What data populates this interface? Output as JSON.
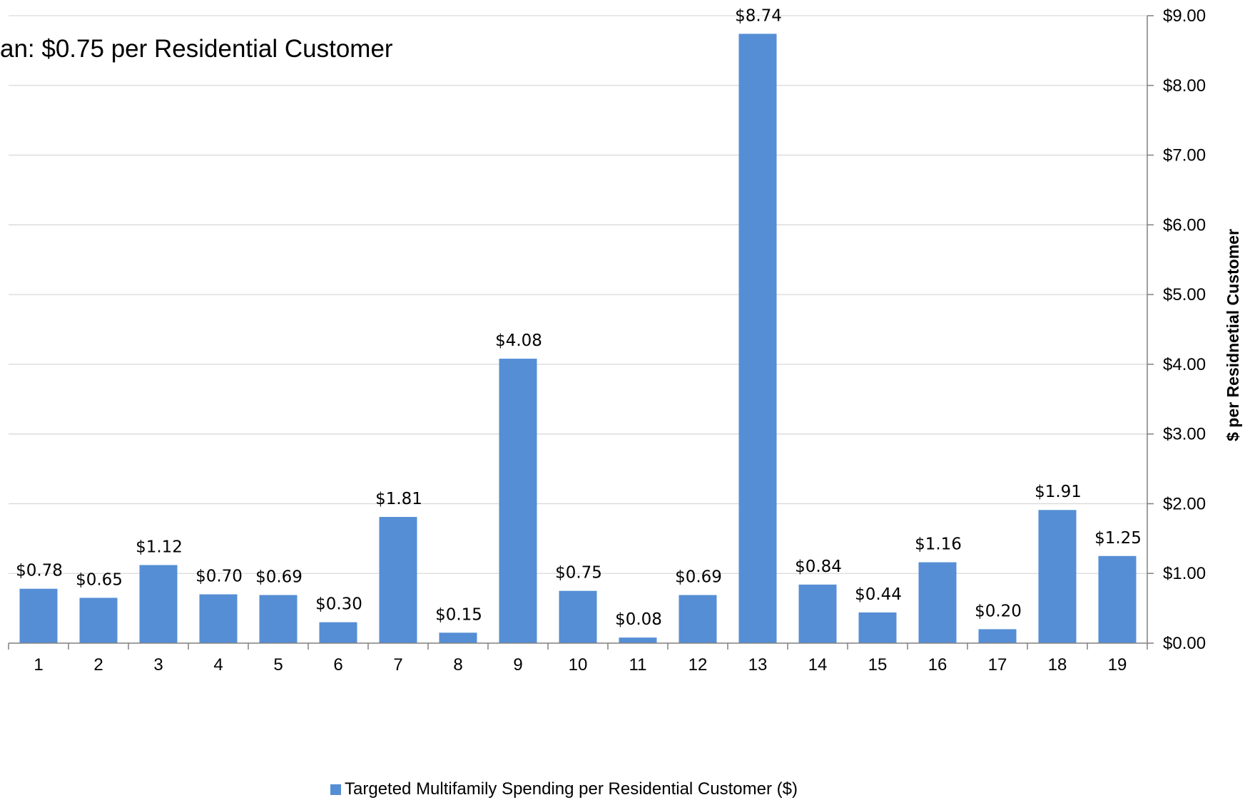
{
  "chart_data": {
    "type": "bar",
    "annotation": "an: $0.75 per Residential Customer",
    "ylabel": "$ per Residnetial Customer",
    "ylim": [
      0,
      9
    ],
    "y_ticks": [
      "$0.00",
      "$1.00",
      "$2.00",
      "$3.00",
      "$4.00",
      "$5.00",
      "$6.00",
      "$7.00",
      "$8.00",
      "$9.00"
    ],
    "grid": true,
    "y_axis_side": "right",
    "categories": [
      "1",
      "2",
      "3",
      "4",
      "5",
      "6",
      "7",
      "8",
      "9",
      "10",
      "11",
      "12",
      "13",
      "14",
      "15",
      "16",
      "17",
      "18",
      "19"
    ],
    "series": [
      {
        "name": "Targeted Multifamily Spending per Residential Customer ($)",
        "values": [
          0.78,
          0.65,
          1.12,
          0.7,
          0.69,
          0.3,
          1.81,
          0.15,
          4.08,
          0.75,
          0.08,
          0.69,
          8.74,
          0.84,
          0.44,
          1.16,
          0.2,
          1.91,
          1.25
        ],
        "labels": [
          "$0.78",
          "$0.65",
          "$1.12",
          "$0.70",
          "$0.69",
          "$0.30",
          "$1.81",
          "$0.15",
          "$4.08",
          "$0.75",
          "$0.08",
          "$0.69",
          "$8.74",
          "$0.84",
          "$0.44",
          "$1.16",
          "$0.20",
          "$1.91",
          "$1.25"
        ],
        "color": "#558ED5"
      }
    ],
    "legend_position": "bottom"
  }
}
